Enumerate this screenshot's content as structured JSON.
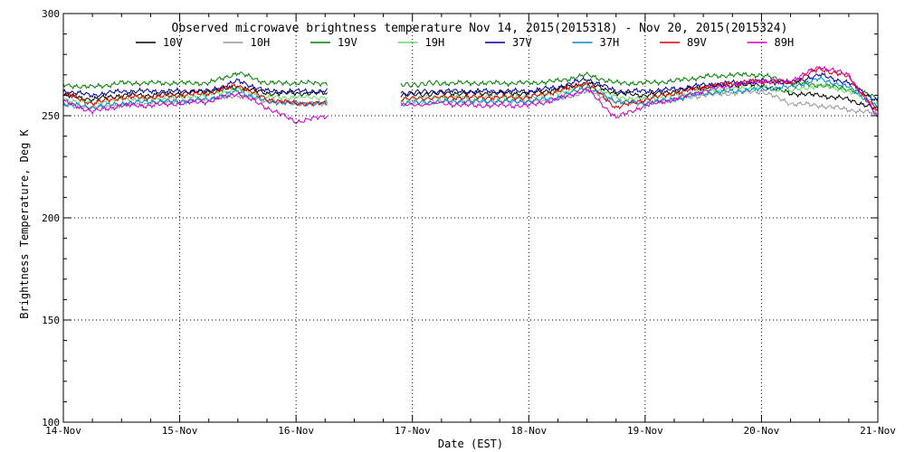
{
  "chart_data": {
    "type": "line",
    "title": "Observed microwave brightness temperature Nov 14, 2015(2015318) - Nov 20, 2015(2015324)",
    "xlabel": "Date (EST)",
    "ylabel": "Brightness Temperature, Deg K",
    "xlim": [
      0,
      7
    ],
    "ylim": [
      100,
      300
    ],
    "x_tick_values": [
      0,
      1,
      2,
      3,
      4,
      5,
      6,
      7
    ],
    "x_tick_labels": [
      "14-Nov",
      "15-Nov",
      "16-Nov",
      "17-Nov",
      "18-Nov",
      "19-Nov",
      "20-Nov",
      "21-Nov"
    ],
    "y_tick_values": [
      100,
      150,
      200,
      250,
      300
    ],
    "y_tick_labels": [
      "100",
      "150",
      "200",
      "250",
      "300"
    ],
    "grid": true,
    "legend_position": "top",
    "x_unit": "days since 14-Nov 00:00 EST",
    "series": [
      {
        "name": "10V",
        "color": "#000000",
        "x": [
          0,
          0.25,
          0.5,
          0.75,
          1,
          1.25,
          1.5,
          1.75,
          2,
          2.28,
          2.9,
          3.25,
          3.5,
          3.75,
          4,
          4.25,
          4.5,
          4.75,
          5,
          5.25,
          5.5,
          5.75,
          6,
          6.25,
          6.5,
          6.75,
          7
        ],
        "y": [
          260,
          258,
          260,
          260,
          261,
          262,
          264,
          261,
          261,
          261,
          260,
          261,
          261,
          261,
          261,
          263,
          266,
          261,
          260,
          262,
          264,
          265,
          265,
          261,
          260,
          258,
          253
        ]
      },
      {
        "name": "10H",
        "color": "#999999",
        "x": [
          0,
          0.25,
          0.5,
          0.75,
          1,
          1.25,
          1.5,
          1.75,
          2,
          2.28,
          2.9,
          3.25,
          3.5,
          3.75,
          4,
          4.25,
          4.5,
          4.75,
          5,
          5.25,
          5.5,
          5.75,
          6,
          6.25,
          6.5,
          6.75,
          7
        ],
        "y": [
          255,
          254,
          255,
          256,
          257,
          258,
          260,
          257,
          256,
          256,
          256,
          257,
          257,
          257,
          257,
          258,
          262,
          257,
          256,
          258,
          260,
          261,
          262,
          256,
          255,
          253,
          251
        ]
      },
      {
        "name": "19V",
        "color": "#008000",
        "x": [
          0,
          0.25,
          0.5,
          0.75,
          1,
          1.25,
          1.5,
          1.75,
          2,
          2.28,
          2.9,
          3.25,
          3.5,
          3.75,
          4,
          4.25,
          4.5,
          4.75,
          5,
          5.25,
          5.5,
          5.75,
          6,
          6.25,
          6.5,
          6.75,
          7
        ],
        "y": [
          265,
          264,
          266,
          266,
          266,
          266,
          271,
          266,
          266,
          266,
          265,
          266,
          266,
          266,
          266,
          267,
          270,
          266,
          266,
          267,
          269,
          270,
          270,
          266,
          265,
          263,
          259
        ]
      },
      {
        "name": "19H",
        "color": "#66dd66",
        "x": [
          0,
          0.25,
          0.5,
          0.75,
          1,
          1.25,
          1.5,
          1.75,
          2,
          2.28,
          2.9,
          3.25,
          3.5,
          3.75,
          4,
          4.25,
          4.5,
          4.75,
          5,
          5.25,
          5.5,
          5.75,
          6,
          6.25,
          6.5,
          6.75,
          7
        ],
        "y": [
          258,
          256,
          258,
          258,
          259,
          260,
          263,
          259,
          259,
          259,
          258,
          259,
          259,
          259,
          259,
          261,
          265,
          259,
          258,
          260,
          262,
          263,
          264,
          262,
          265,
          262,
          256
        ]
      },
      {
        "name": "37V",
        "color": "#000099",
        "x": [
          0,
          0.25,
          0.5,
          0.75,
          1,
          1.25,
          1.5,
          1.75,
          2,
          2.28,
          2.9,
          3.25,
          3.5,
          3.75,
          4,
          4.25,
          4.5,
          4.75,
          5,
          5.25,
          5.5,
          5.75,
          6,
          6.25,
          6.5,
          6.75,
          7
        ],
        "y": [
          262,
          260,
          262,
          262,
          262,
          262,
          267,
          262,
          262,
          262,
          261,
          262,
          262,
          262,
          262,
          264,
          268,
          262,
          262,
          263,
          265,
          266,
          267,
          266,
          270,
          266,
          257
        ]
      },
      {
        "name": "37H",
        "color": "#0088cc",
        "x": [
          0,
          0.25,
          0.5,
          0.75,
          1,
          1.25,
          1.5,
          1.75,
          2,
          2.28,
          2.9,
          3.25,
          3.5,
          3.75,
          4,
          4.25,
          4.5,
          4.75,
          5,
          5.25,
          5.5,
          5.75,
          6,
          6.25,
          6.5,
          6.75,
          7
        ],
        "y": [
          256,
          254,
          256,
          257,
          257,
          258,
          262,
          257,
          256,
          256,
          256,
          257,
          257,
          257,
          257,
          259,
          264,
          257,
          256,
          258,
          261,
          262,
          263,
          264,
          268,
          264,
          254
        ]
      },
      {
        "name": "89V",
        "color": "#dd0000",
        "x": [
          0,
          0.25,
          0.5,
          0.75,
          1,
          1.25,
          1.5,
          1.75,
          2,
          2.28,
          2.9,
          3.25,
          3.5,
          3.75,
          4,
          4.25,
          4.5,
          4.75,
          5,
          5.25,
          5.5,
          5.75,
          6,
          6.25,
          6.5,
          6.75,
          7
        ],
        "y": [
          261,
          256,
          259,
          259,
          260,
          261,
          265,
          258,
          256,
          256,
          258,
          259,
          259,
          259,
          259,
          262,
          266,
          254,
          258,
          261,
          264,
          266,
          267,
          266,
          273,
          269,
          252
        ]
      },
      {
        "name": "89H",
        "color": "#cc00cc",
        "x": [
          0,
          0.25,
          0.5,
          0.75,
          1,
          1.25,
          1.5,
          1.75,
          2,
          2.28,
          2.9,
          3.25,
          3.5,
          3.75,
          4,
          4.25,
          4.5,
          4.75,
          5,
          5.25,
          5.5,
          5.75,
          6,
          6.25,
          6.5,
          6.75,
          7
        ],
        "y": [
          257,
          252,
          255,
          255,
          256,
          257,
          261,
          254,
          247,
          250,
          255,
          256,
          255,
          255,
          255,
          258,
          263,
          249,
          255,
          258,
          262,
          265,
          267,
          267,
          274,
          270,
          249
        ]
      }
    ]
  }
}
